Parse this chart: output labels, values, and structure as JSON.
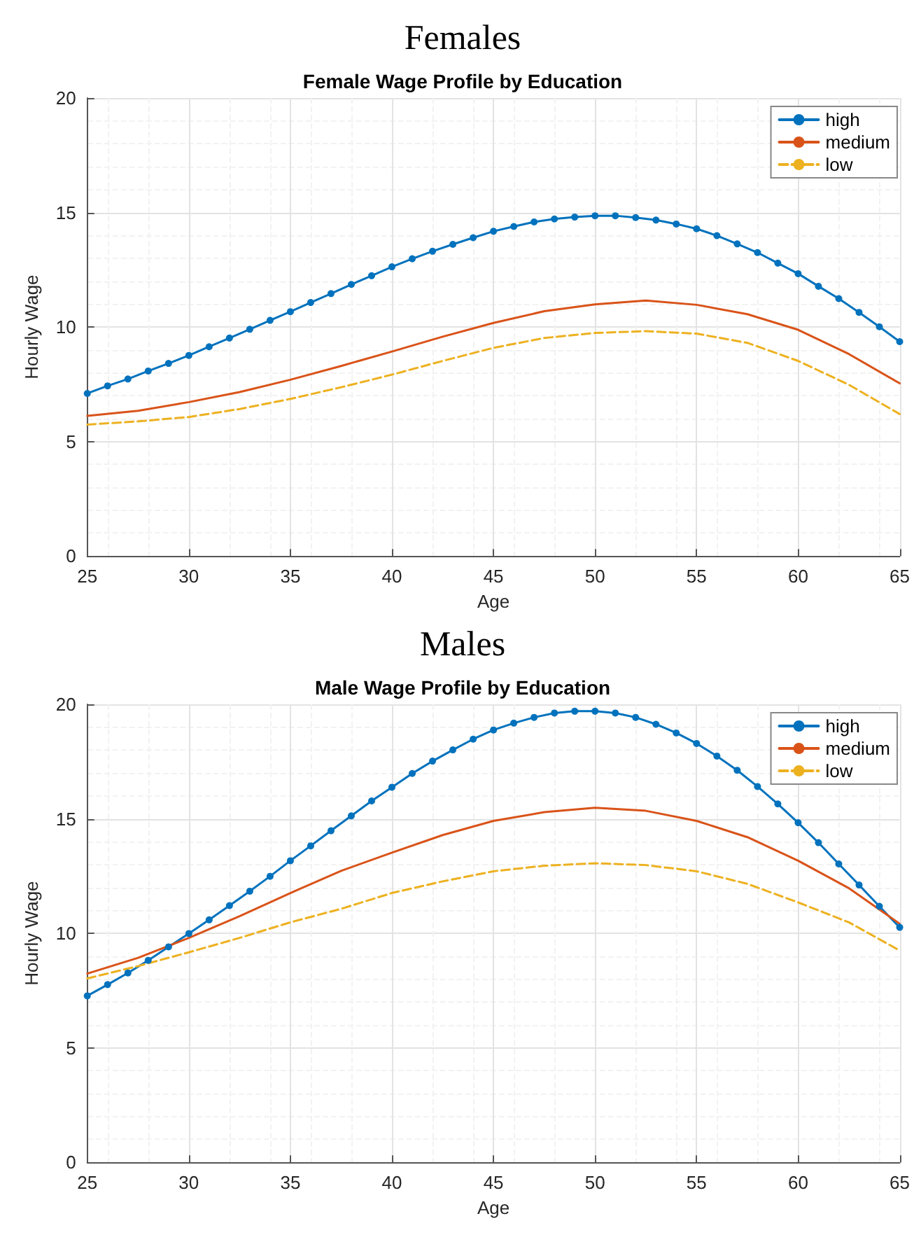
{
  "chart_data": [
    {
      "type": "line",
      "title": "Females",
      "subtitle": "Female Wage Profile by Education",
      "xlabel": "Age",
      "ylabel": "Hourly Wage",
      "xlim": [
        25,
        65
      ],
      "xticks": [
        25,
        30,
        35,
        40,
        45,
        50,
        55,
        60,
        65
      ],
      "ylim": [
        0,
        20
      ],
      "yticks": [
        0,
        5,
        10,
        15,
        20
      ],
      "grid": true,
      "legend": "top right",
      "x": [
        25,
        26,
        27,
        28,
        29,
        30,
        31,
        32,
        33,
        34,
        35,
        36,
        37,
        38,
        39,
        40,
        41,
        42,
        43,
        44,
        45,
        46,
        47,
        48,
        49,
        50,
        51,
        52,
        53,
        54,
        55,
        56,
        57,
        58,
        59,
        60,
        61,
        62,
        63,
        64,
        65
      ],
      "series": [
        {
          "name": "high",
          "color": "#0072bd",
          "marker": "circle",
          "line_style": "solid",
          "values": [
            7.1,
            7.43,
            7.73,
            8.08,
            8.41,
            8.76,
            9.14,
            9.52,
            9.9,
            10.29,
            10.67,
            11.07,
            11.46,
            11.86,
            12.24,
            12.63,
            12.98,
            13.31,
            13.61,
            13.9,
            14.18,
            14.39,
            14.59,
            14.72,
            14.8,
            14.86,
            14.86,
            14.78,
            14.67,
            14.5,
            14.29,
            13.99,
            13.63,
            13.25,
            12.79,
            12.33,
            11.78,
            11.24,
            10.64,
            10.01,
            9.36
          ]
        },
        {
          "name": "medium",
          "color": "#d95319",
          "marker": "none",
          "line_style": "solid",
          "x": [
            25,
            27.5,
            30,
            32.5,
            35,
            37.5,
            40,
            42.5,
            45,
            47.5,
            50,
            52.5,
            55,
            57.5,
            60,
            62.5,
            65
          ],
          "values": [
            6.12,
            6.34,
            6.72,
            7.16,
            7.7,
            8.3,
            8.93,
            9.58,
            10.18,
            10.69,
            10.99,
            11.16,
            10.97,
            10.56,
            9.88,
            8.82,
            7.54
          ]
        },
        {
          "name": "low",
          "color": "#edb120",
          "marker": "none",
          "line_style": "dashed",
          "x": [
            25,
            27.5,
            30,
            32.5,
            35,
            37.5,
            40,
            42.5,
            45,
            47.5,
            50,
            52.5,
            55,
            57.5,
            60,
            62.5,
            65
          ],
          "values": [
            5.74,
            5.88,
            6.07,
            6.42,
            6.86,
            7.37,
            7.92,
            8.52,
            9.09,
            9.52,
            9.74,
            9.82,
            9.71,
            9.31,
            8.52,
            7.48,
            6.2
          ]
        }
      ]
    },
    {
      "type": "line",
      "title": "Males",
      "subtitle": "Male Wage Profile by Education",
      "xlabel": "Age",
      "ylabel": "Hourly Wage",
      "xlim": [
        25,
        65
      ],
      "xticks": [
        25,
        30,
        35,
        40,
        45,
        50,
        55,
        60,
        65
      ],
      "ylim": [
        0,
        20
      ],
      "yticks": [
        0,
        5,
        10,
        15,
        20
      ],
      "grid": true,
      "legend": "top right",
      "x": [
        25,
        26,
        27,
        28,
        29,
        30,
        31,
        32,
        33,
        34,
        35,
        36,
        37,
        38,
        39,
        40,
        41,
        42,
        43,
        44,
        45,
        46,
        47,
        48,
        49,
        50,
        51,
        52,
        53,
        54,
        55,
        56,
        57,
        58,
        59,
        60,
        61,
        62,
        63,
        64,
        65
      ],
      "series": [
        {
          "name": "high",
          "color": "#0072bd",
          "marker": "circle",
          "line_style": "solid",
          "values": [
            7.27,
            7.76,
            8.27,
            8.82,
            9.41,
            9.99,
            10.59,
            11.21,
            11.84,
            12.49,
            13.17,
            13.82,
            14.48,
            15.13,
            15.78,
            16.38,
            16.98,
            17.52,
            18.01,
            18.48,
            18.88,
            19.18,
            19.43,
            19.62,
            19.7,
            19.7,
            19.62,
            19.43,
            19.13,
            18.75,
            18.29,
            17.74,
            17.12,
            16.41,
            15.65,
            14.83,
            13.96,
            13.03,
            12.11,
            11.18,
            10.26
          ]
        },
        {
          "name": "medium",
          "color": "#d95319",
          "marker": "none",
          "line_style": "solid",
          "x": [
            25,
            27.5,
            30,
            32.5,
            35,
            37.5,
            40,
            42.5,
            45,
            47.5,
            50,
            52.5,
            55,
            57.5,
            60,
            62.5,
            65
          ],
          "values": [
            8.24,
            8.93,
            9.8,
            10.75,
            11.76,
            12.73,
            13.52,
            14.29,
            14.91,
            15.29,
            15.48,
            15.35,
            14.91,
            14.2,
            13.17,
            11.97,
            10.42
          ]
        },
        {
          "name": "low",
          "color": "#edb120",
          "marker": "none",
          "line_style": "dashed",
          "x": [
            25,
            27.5,
            30,
            32.5,
            35,
            37.5,
            40,
            42.5,
            45,
            47.5,
            50,
            52.5,
            55,
            57.5,
            60,
            62.5,
            65
          ],
          "values": [
            8.03,
            8.57,
            9.17,
            9.8,
            10.48,
            11.07,
            11.76,
            12.27,
            12.71,
            12.95,
            13.06,
            12.98,
            12.71,
            12.16,
            11.35,
            10.48,
            9.25
          ]
        }
      ]
    }
  ]
}
